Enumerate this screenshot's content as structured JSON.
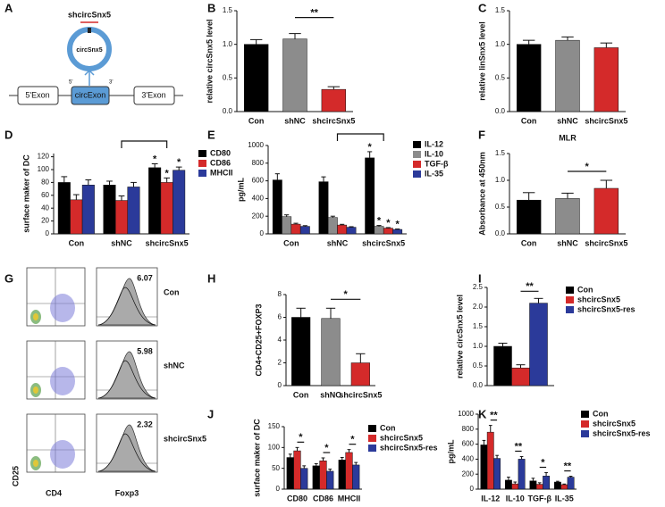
{
  "panel_labels": [
    "A",
    "B",
    "C",
    "D",
    "E",
    "F",
    "G",
    "H",
    "I",
    "J",
    "K"
  ],
  "diagram": {
    "knockdown": "shcircSnx5",
    "circle": "circSnx5",
    "exon_left": "5'Exon",
    "exon_mid": "circExon",
    "exon_right": "3'Exon",
    "end5": "5'",
    "end3": "3'"
  },
  "flow": {
    "y_label": "CD25",
    "x_label_scatter": "CD4",
    "x_label_hist": "Foxp3",
    "samples": [
      {
        "name": "Con",
        "percent": 6.07
      },
      {
        "name": "shNC",
        "percent": 5.98
      },
      {
        "name": "shcircSnx5",
        "percent": 2.32
      }
    ]
  },
  "chart_data": [
    {
      "type": "bar",
      "y_label": "relative circSnx5 level",
      "categories": [
        "Con",
        "shNC",
        "shcircSnx5"
      ],
      "values": [
        1.0,
        1.08,
        0.33
      ],
      "errors": [
        0.07,
        0.08,
        0.04
      ],
      "colors": [
        "#000000",
        "#8c8c8c",
        "#d42a2a"
      ],
      "ylim": [
        0,
        1.5
      ],
      "yticks": [
        {
          "value": 0,
          "label": "0.0"
        },
        {
          "value": 0.5,
          "label": "0.5"
        },
        {
          "value": 1,
          "label": "1.0"
        },
        {
          "value": 1.5,
          "label": "1.5"
        }
      ],
      "annotations": [
        "**"
      ]
    },
    {
      "type": "bar",
      "y_label": "relative linSnx5 level",
      "categories": [
        "Con",
        "shNC",
        "shcircSnx5"
      ],
      "values": [
        1.0,
        1.06,
        0.95
      ],
      "errors": [
        0.06,
        0.05,
        0.07
      ],
      "colors": [
        "#000000",
        "#8c8c8c",
        "#d42a2a"
      ],
      "ylim": [
        0,
        1.5
      ],
      "yticks": [
        {
          "value": 0,
          "label": "0.0"
        },
        {
          "value": 0.5,
          "label": "0.5"
        },
        {
          "value": 1,
          "label": "1.0"
        },
        {
          "value": 1.5,
          "label": "1.5"
        }
      ],
      "annotations": []
    },
    {
      "type": "bar",
      "y_label": "surface maker of DC",
      "categories": [
        "Con",
        "shNC",
        "shcircSnx5"
      ],
      "series": [
        {
          "name": "CD80",
          "color": "#000000",
          "values": [
            80,
            76,
            103
          ],
          "errors": [
            9,
            6,
            6
          ]
        },
        {
          "name": "CD86",
          "color": "#d42a2a",
          "values": [
            53,
            52,
            80
          ],
          "errors": [
            8,
            7,
            7
          ]
        },
        {
          "name": "MHCII",
          "color": "#2b3a9a",
          "values": [
            76,
            73,
            99
          ],
          "errors": [
            8,
            7,
            5
          ]
        }
      ],
      "ylim": [
        0,
        125
      ],
      "yticks": [
        0,
        20,
        40,
        60,
        80,
        100,
        120
      ],
      "annotations": [
        "*",
        "*",
        "*"
      ]
    },
    {
      "type": "bar",
      "y_label": "pg/mL",
      "categories": [
        "Con",
        "shNC",
        "shcircSnx5"
      ],
      "series": [
        {
          "name": "IL-12",
          "color": "#000000",
          "values": [
            610,
            590,
            860
          ],
          "errors": [
            70,
            55,
            70
          ]
        },
        {
          "name": "IL-10",
          "color": "#8c8c8c",
          "values": [
            195,
            185,
            85
          ],
          "errors": [
            20,
            15,
            10
          ]
        },
        {
          "name": "TGF-β",
          "color": "#d42a2a",
          "values": [
            110,
            100,
            65
          ],
          "errors": [
            10,
            8,
            6
          ]
        },
        {
          "name": "IL-35",
          "color": "#2b3a9a",
          "values": [
            85,
            75,
            50
          ],
          "errors": [
            8,
            6,
            5
          ]
        }
      ],
      "ylim": [
        0,
        1000
      ],
      "yticks": [
        0,
        200,
        400,
        600,
        800,
        1000
      ],
      "annotations": [
        "*",
        "*",
        "*",
        "*"
      ]
    },
    {
      "type": "bar",
      "title": "MLR",
      "y_label": "Absorbance at 450nm",
      "categories": [
        "Con",
        "shNC",
        "shcircSnx5"
      ],
      "values": [
        0.63,
        0.66,
        0.85
      ],
      "errors": [
        0.14,
        0.1,
        0.15
      ],
      "colors": [
        "#000000",
        "#8c8c8c",
        "#d42a2a"
      ],
      "ylim": [
        0,
        1.5
      ],
      "yticks": [
        {
          "value": 0,
          "label": "0.0"
        },
        {
          "value": 0.5,
          "label": "0.5"
        },
        {
          "value": 1,
          "label": "1.0"
        },
        {
          "value": 1.5,
          "label": "1.5"
        }
      ],
      "annotations": [
        "*"
      ]
    },
    {
      "type": "bar",
      "y_label": "CD4+CD25+FOXP3",
      "categories": [
        "Con",
        "shNC",
        "shcircSnx5"
      ],
      "values": [
        6.0,
        5.9,
        2.0
      ],
      "errors": [
        0.8,
        0.9,
        0.8
      ],
      "colors": [
        "#000000",
        "#8c8c8c",
        "#d42a2a"
      ],
      "ylim": [
        0,
        8
      ],
      "yticks": [
        0,
        2,
        4,
        6,
        8
      ],
      "annotations": [
        "*"
      ]
    },
    {
      "type": "bar",
      "y_label": "relative circSnx5 level",
      "categories": [
        null
      ],
      "series": [
        {
          "name": "Con",
          "color": "#000000",
          "values": [
            1.0
          ],
          "errors": [
            0.08
          ]
        },
        {
          "name": "shcircSnx5",
          "color": "#d42a2a",
          "values": [
            0.45
          ],
          "errors": [
            0.08
          ]
        },
        {
          "name": "shcircSnx5-res",
          "color": "#2b3a9a",
          "values": [
            2.1
          ],
          "errors": [
            0.12
          ]
        }
      ],
      "ylim": [
        0,
        2.5
      ],
      "yticks": [
        {
          "value": 0,
          "label": "0.0"
        },
        {
          "value": 0.5,
          "label": "0.5"
        },
        {
          "value": 1,
          "label": "1.0"
        },
        {
          "value": 1.5,
          "label": "1.5"
        },
        {
          "value": 2,
          "label": "2.0"
        },
        {
          "value": 2.5,
          "label": "2.5"
        }
      ],
      "annotations": [
        "**"
      ]
    },
    {
      "type": "bar",
      "y_label": "surface maker of DC",
      "categories": [
        "CD80",
        "CD86",
        "MHCII"
      ],
      "series": [
        {
          "name": "Con",
          "color": "#000000",
          "values": [
            76,
            56,
            70
          ],
          "errors": [
            8,
            5,
            6
          ]
        },
        {
          "name": "shcircSnx5",
          "color": "#d42a2a",
          "values": [
            92,
            68,
            88
          ],
          "errors": [
            8,
            7,
            7
          ]
        },
        {
          "name": "shcircSnx5-res",
          "color": "#2b3a9a",
          "values": [
            50,
            43,
            58
          ],
          "errors": [
            6,
            5,
            6
          ]
        }
      ],
      "ylim": [
        0,
        150
      ],
      "yticks": [
        0,
        50,
        100,
        150
      ],
      "annotations": [
        "*",
        "*",
        "*"
      ]
    },
    {
      "type": "bar",
      "y_label": "pg/mL",
      "categories": [
        "IL-12",
        "IL-10",
        "TGF-β",
        "IL-35"
      ],
      "series": [
        {
          "name": "Con",
          "color": "#000000",
          "values": [
            590,
            120,
            110,
            95
          ],
          "errors": [
            60,
            40,
            35,
            10
          ]
        },
        {
          "name": "shcircSnx5",
          "color": "#d42a2a",
          "values": [
            760,
            70,
            65,
            60
          ],
          "errors": [
            90,
            25,
            20,
            8
          ]
        },
        {
          "name": "shcircSnx5-res",
          "color": "#2b3a9a",
          "values": [
            410,
            400,
            175,
            160
          ],
          "errors": [
            40,
            35,
            45,
            12
          ]
        }
      ],
      "ylim": [
        0,
        1000
      ],
      "yticks": [
        0,
        200,
        400,
        600,
        800,
        1000
      ],
      "annotations": [
        "**",
        "**",
        "*",
        "**"
      ]
    }
  ]
}
